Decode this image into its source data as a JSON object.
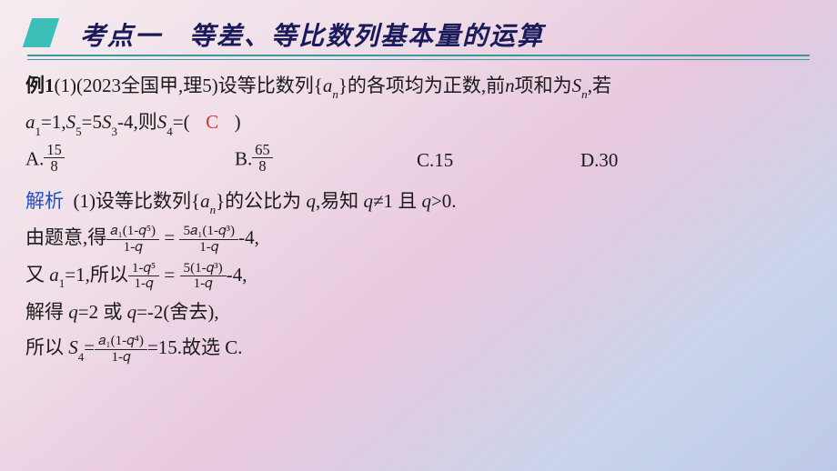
{
  "header": {
    "title": "考点一　等差、等比数列基本量的运算"
  },
  "problem": {
    "prefix": "例1",
    "text1": "(1)(2023全国甲,理5)设等比数列{",
    "seq": "a",
    "seq_sub": "n",
    "text2": "}的各项均为正数,前",
    "nvar": "n",
    "text3": "项和为",
    "Svar": "S",
    "S_sub": "n",
    "text4": ",若",
    "cond1a": "a",
    "cond1a_sub": "1",
    "cond1_eq": "=1,",
    "cond2a": "S",
    "cond2a_sub": "5",
    "cond2_eq": "=5",
    "cond2b": "S",
    "cond2b_sub": "3",
    "cond2_tail": "-4,则",
    "ask": "S",
    "ask_sub": "4",
    "ask_eq": "=(",
    "answer": "C",
    "close": ")"
  },
  "choices": {
    "A_label": "A.",
    "A_num": "15",
    "A_den": "8",
    "B_label": "B.",
    "B_num": "65",
    "B_den": "8",
    "C_label": "C.15",
    "D_label": "D.30"
  },
  "solution": {
    "label": "解析",
    "l1_a": "(1)设等比数列{",
    "l1_seq": "a",
    "l1_sub": "n",
    "l1_b": "}的公比为 ",
    "l1_q": "q",
    "l1_c": ",易知 ",
    "l1_q2": "q",
    "l1_ne": "≠1 且 ",
    "l1_q3": "q",
    "l1_gt": ">0.",
    "l2_a": "由题意,得",
    "l2_f1_num": "𝑎₁(1-𝑞⁵)",
    "l2_f1_den": "1-𝑞",
    "l2_eq1": " = ",
    "l2_f2_num": "5𝑎₁(1-𝑞³)",
    "l2_f2_den": "1-𝑞",
    "l2_tail": "-4,",
    "l3_a": "又 ",
    "l3_a1": "a",
    "l3_a1s": "1",
    "l3_b": "=1,所以",
    "l3_f1_num": "1-𝑞⁵",
    "l3_f1_den": "1-𝑞",
    "l3_eq": " = ",
    "l3_f2_num": "5(1-𝑞³)",
    "l3_f2_den": "1-𝑞",
    "l3_tail": "-4,",
    "l4_a": "解得 ",
    "l4_q1": "q",
    "l4_b": "=2 或 ",
    "l4_q2": "q",
    "l4_c": "=-2(舍去),",
    "l5_a": "所以 ",
    "l5_S": "S",
    "l5_S_sub": "4",
    "l5_eq": "=",
    "l5_f_num": "𝑎₁(1-𝑞⁴)",
    "l5_f_den": "1-𝑞",
    "l5_tail": "=15.故选 C."
  },
  "style": {
    "answer_color": "#d3362f",
    "blue_color": "#2050c8",
    "title_color": "#1a1a5a",
    "marker_color": "#3cbfb9",
    "line_color": "#3a9aa0"
  }
}
